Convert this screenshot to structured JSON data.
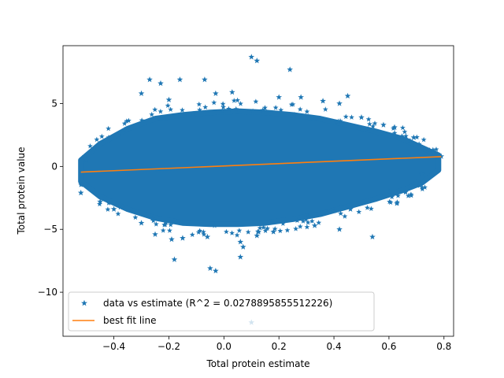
{
  "chart_data": {
    "type": "scatter",
    "title": "",
    "xlabel": "Total protein estimate",
    "ylabel": "Total protein value",
    "xlim": [
      -0.585,
      0.835
    ],
    "ylim": [
      -13.5,
      9.6
    ],
    "x_ticks": [
      -0.4,
      -0.2,
      0.0,
      0.2,
      0.4,
      0.6,
      0.8
    ],
    "x_tick_labels": [
      "−0.4",
      "−0.2",
      "0.0",
      "0.2",
      "0.4",
      "0.6",
      "0.8"
    ],
    "y_ticks": [
      -10,
      -5,
      0,
      5
    ],
    "y_tick_labels": [
      "−10",
      "−5",
      "0",
      "5"
    ],
    "grid": false,
    "legend": {
      "placement": "lower-left",
      "entries": [
        {
          "label": "data vs estimate (R^2 = 0.0278895855512226)",
          "marker": "star",
          "color": "#1f77b4"
        },
        {
          "label": "best fit line",
          "marker": "line",
          "color": "#ff7f0e"
        }
      ]
    },
    "series": [
      {
        "name": "data vs estimate (R^2 = 0.0278895855512226)",
        "kind": "scatter",
        "marker": "star",
        "color": "#1f77b4",
        "cloud_envelope": {
          "x": [
            -0.52,
            -0.45,
            -0.35,
            -0.25,
            -0.15,
            -0.05,
            0.05,
            0.15,
            0.25,
            0.35,
            0.45,
            0.55,
            0.65,
            0.72,
            0.78
          ],
          "y_upper": [
            0.5,
            1.8,
            3.0,
            3.8,
            4.1,
            4.3,
            4.4,
            4.3,
            4.1,
            3.8,
            3.3,
            2.8,
            2.2,
            1.5,
            0.9
          ],
          "y_lower": [
            -1.2,
            -2.4,
            -3.4,
            -4.1,
            -4.5,
            -4.6,
            -4.6,
            -4.5,
            -4.2,
            -3.8,
            -3.2,
            -2.6,
            -1.9,
            -1.3,
            -0.3
          ]
        },
        "points": [
          [
            0.1,
            8.7
          ],
          [
            0.12,
            8.4
          ],
          [
            0.24,
            7.7
          ],
          [
            -0.27,
            6.9
          ],
          [
            -0.16,
            6.9
          ],
          [
            -0.07,
            6.9
          ],
          [
            -0.23,
            6.6
          ],
          [
            -0.3,
            5.8
          ],
          [
            0.45,
            5.6
          ],
          [
            -0.2,
            5.3
          ],
          [
            0.2,
            5.5
          ],
          [
            0.28,
            5.5
          ],
          [
            0.42,
            5.0
          ],
          [
            0.03,
            5.9
          ],
          [
            -0.03,
            5.8
          ],
          [
            0.36,
            5.2
          ],
          [
            0.5,
            3.9
          ],
          [
            0.58,
            3.3
          ],
          [
            0.62,
            3.1
          ],
          [
            0.69,
            2.3
          ],
          [
            0.73,
            1.4
          ],
          [
            0.76,
            1.3
          ],
          [
            0.79,
            0.8
          ],
          [
            -0.5,
            0.5
          ],
          [
            -0.52,
            -2.1
          ],
          [
            -0.45,
            -2.8
          ],
          [
            -0.4,
            -3.4
          ],
          [
            -0.3,
            -4.5
          ],
          [
            -0.25,
            -5.4
          ],
          [
            -0.19,
            -5.8
          ],
          [
            -0.15,
            -5.7
          ],
          [
            -0.18,
            -7.4
          ],
          [
            -0.06,
            -5.6
          ],
          [
            0.12,
            -5.5
          ],
          [
            0.18,
            -5.2
          ],
          [
            0.06,
            -6.0
          ],
          [
            0.07,
            -6.4
          ],
          [
            0.06,
            -7.2
          ],
          [
            -0.05,
            -8.1
          ],
          [
            -0.03,
            -8.3
          ],
          [
            0.33,
            -4.7
          ],
          [
            0.42,
            -5.0
          ],
          [
            0.54,
            -5.6
          ],
          [
            0.46,
            -3.4
          ],
          [
            0.6,
            -2.0
          ],
          [
            0.7,
            -1.3
          ],
          [
            0.72,
            -0.6
          ],
          [
            0.1,
            -12.4
          ]
        ]
      },
      {
        "name": "best fit line",
        "kind": "line",
        "color": "#ff7f0e",
        "x": [
          -0.52,
          0.79
        ],
        "y": [
          -0.45,
          0.78
        ]
      }
    ]
  }
}
